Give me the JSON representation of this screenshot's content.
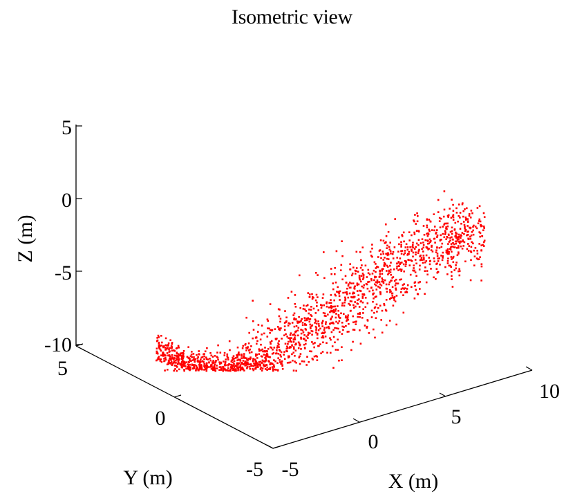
{
  "chart_data": {
    "type": "scatter",
    "projection": "isometric-3d",
    "title": "Isometric view",
    "xlabel": "X (m)",
    "ylabel": "Y (m)",
    "zlabel": "Z (m)",
    "xlim": [
      -5,
      10
    ],
    "ylim": [
      -5,
      5
    ],
    "zlim": [
      -10,
      5
    ],
    "xticks": [
      "-5",
      "0",
      "5",
      "10"
    ],
    "yticks": [
      "-5",
      "0",
      "5"
    ],
    "zticks": [
      "-10",
      "-5",
      "0",
      "5"
    ],
    "grid": false,
    "marker_color": "#ff0000",
    "marker": "dot",
    "series": [
      {
        "description_points": "point cloud",
        "x": [
          -4.5,
          -4.2,
          -3.8,
          -3.5,
          -3.2,
          -3.0,
          -2.7,
          -2.4,
          -2.1,
          -1.8,
          -1.5,
          -1.2,
          -0.9,
          -0.6,
          -0.3,
          0.0,
          0.3,
          0.6,
          0.9,
          1.2,
          1.5,
          1.8,
          2.1,
          2.4,
          2.7,
          3.0,
          3.3,
          3.6,
          3.9,
          4.2,
          4.5,
          4.8,
          5.1,
          5.4,
          5.7,
          6.0,
          6.3,
          6.6,
          6.9,
          7.2
        ],
        "y": [
          3.5,
          3.2,
          2.8,
          2.5,
          2.1,
          1.8,
          1.5,
          1.2,
          0.9,
          0.6,
          0.3,
          0.0,
          -0.2,
          -0.4,
          -0.6,
          -0.8,
          -1.0,
          -1.2,
          -1.4,
          -1.6,
          -1.8,
          -2.0,
          -2.2,
          -2.4,
          -2.6,
          -2.8,
          -3.0,
          -3.2,
          -3.4,
          -3.6,
          -3.8,
          -4.0,
          -4.1,
          -4.2,
          -4.3,
          -4.4,
          -4.5,
          -4.6,
          -4.7,
          -4.8
        ],
        "z": [
          -7.5,
          -8.0,
          -8.4,
          -8.8,
          -9.1,
          -9.3,
          -9.5,
          -9.6,
          -9.6,
          -9.5,
          -9.4,
          -9.2,
          -9.0,
          -8.7,
          -8.4,
          -8.0,
          -7.6,
          -7.2,
          -6.7,
          -6.2,
          -5.7,
          -5.2,
          -4.7,
          -4.2,
          -3.7,
          -3.2,
          -2.7,
          -2.2,
          -1.8,
          -1.4,
          -1.0,
          -0.7,
          -0.4,
          -0.2,
          0.0,
          0.2,
          0.3,
          0.4,
          0.5,
          0.6
        ]
      }
    ]
  }
}
